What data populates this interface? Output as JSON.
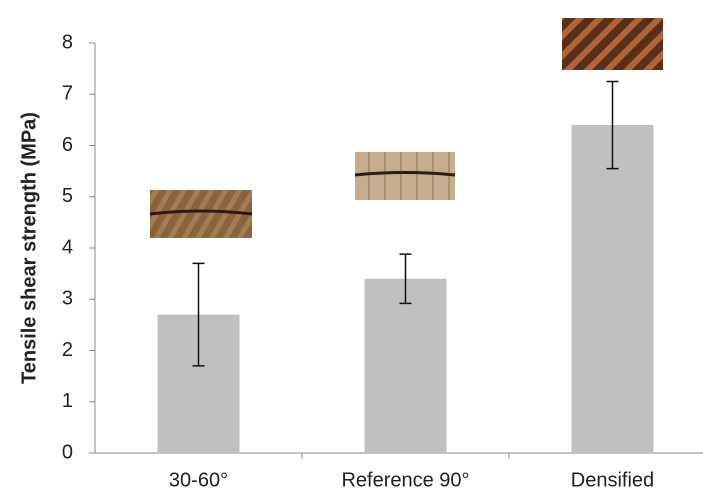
{
  "chart_data": {
    "type": "bar",
    "y_label": "Tensile shear strength (MPa)",
    "categories": [
      "30-60°",
      "Reference 90°",
      "Densified"
    ],
    "values": [
      2.7,
      3.4,
      6.4
    ],
    "errors": [
      1.0,
      0.48,
      0.85
    ],
    "color": "#c0c0c0",
    "ylim": [
      0,
      8
    ],
    "yticks": [
      0,
      1,
      2,
      3,
      4,
      5,
      6,
      7,
      8
    ]
  }
}
